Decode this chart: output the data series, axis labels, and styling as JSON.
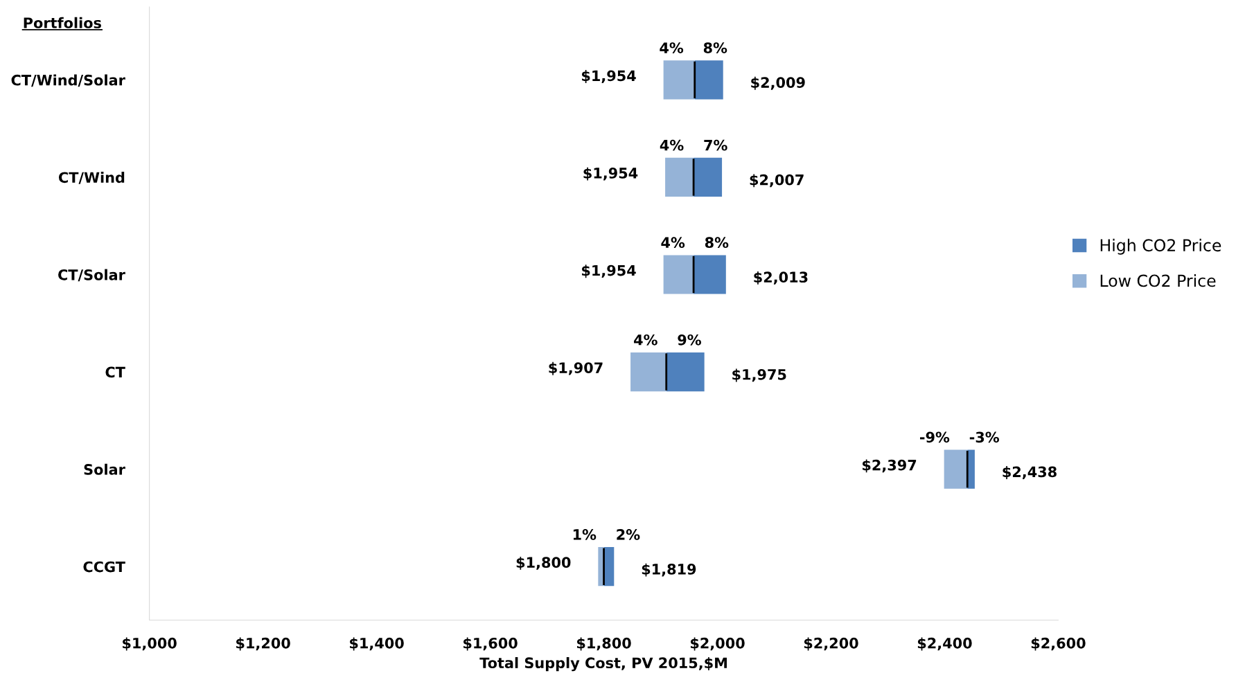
{
  "chart_data": {
    "type": "bar",
    "orientation": "horizontal",
    "ylabel": "Portfolios",
    "xlabel": "Total Supply Cost, PV 2015,$M",
    "categories": [
      "CT/Wind/Solar",
      "CT/Wind",
      "CT/Solar",
      "CT",
      "Solar",
      "CCGT"
    ],
    "series": [
      {
        "name": "High CO2 Price",
        "color": "#4f81bd",
        "base": [
          1960,
          1958,
          1958,
          1910,
          2440,
          1800
        ],
        "values": [
          50,
          50,
          57,
          67,
          13,
          18
        ]
      },
      {
        "name": "Low CO2 Price",
        "color": "#95b3d7",
        "base": [
          1905,
          1908,
          1905,
          1847,
          2399,
          1790
        ],
        "values": [
          55,
          50,
          53,
          63,
          41,
          10
        ]
      }
    ],
    "annotations": [
      {
        "text": "4%",
        "x": 1905,
        "y": "CT/Wind/Solar"
      },
      {
        "text": "8%",
        "x": 2010,
        "y": "CT/Wind/Solar"
      },
      {
        "text": "$1,954",
        "x": 1905,
        "y": "CT/Wind/Solar"
      },
      {
        "text": "$2,009",
        "x": 2010,
        "y": "CT/Wind/Solar"
      },
      {
        "text": "4%",
        "x": 1908,
        "y": "CT/Wind"
      },
      {
        "text": "7%",
        "x": 2008,
        "y": "CT/Wind"
      },
      {
        "text": "$1,954",
        "x": 1908,
        "y": "CT/Wind"
      },
      {
        "text": "$2,007",
        "x": 2008,
        "y": "CT/Wind"
      },
      {
        "text": "4%",
        "x": 1905,
        "y": "CT/Solar"
      },
      {
        "text": "8%",
        "x": 2015,
        "y": "CT/Solar"
      },
      {
        "text": "$1,954",
        "x": 1905,
        "y": "CT/Solar"
      },
      {
        "text": "$2,013",
        "x": 2015,
        "y": "CT/Solar"
      },
      {
        "text": "4%",
        "x": 1847,
        "y": "CT"
      },
      {
        "text": "9%",
        "x": 1977,
        "y": "CT"
      },
      {
        "text": "$1,907",
        "x": 1847,
        "y": "CT"
      },
      {
        "text": "$1,975",
        "x": 1977,
        "y": "CT"
      },
      {
        "text": "-9%",
        "x": 2399,
        "y": "Solar"
      },
      {
        "text": "-3%",
        "x": 2453,
        "y": "Solar"
      },
      {
        "text": "$2,397",
        "x": 2399,
        "y": "Solar"
      },
      {
        "text": "$2,438",
        "x": 2453,
        "y": "Solar"
      },
      {
        "text": "1%",
        "x": 1790,
        "y": "CCGT"
      },
      {
        "text": "2%",
        "x": 1818,
        "y": "CCGT"
      },
      {
        "text": "$1,800",
        "x": 1790,
        "y": "CCGT"
      },
      {
        "text": "$1,819",
        "x": 1818,
        "y": "CCGT"
      }
    ],
    "xlim": [
      1000,
      2600
    ],
    "xticks": [
      {
        "value": 1000,
        "label": "$1,000"
      },
      {
        "value": 1200,
        "label": "$1,200"
      },
      {
        "value": 1400,
        "label": "$1,400"
      },
      {
        "value": 1600,
        "label": "$1,600"
      },
      {
        "value": 1800,
        "label": "$1,800"
      },
      {
        "value": 2000,
        "label": "$2,000"
      },
      {
        "value": 2200,
        "label": "$2,200"
      },
      {
        "value": 2400,
        "label": "$2,400"
      },
      {
        "value": 2600,
        "label": "$2,600"
      }
    ],
    "legend": "right",
    "grid": false
  }
}
